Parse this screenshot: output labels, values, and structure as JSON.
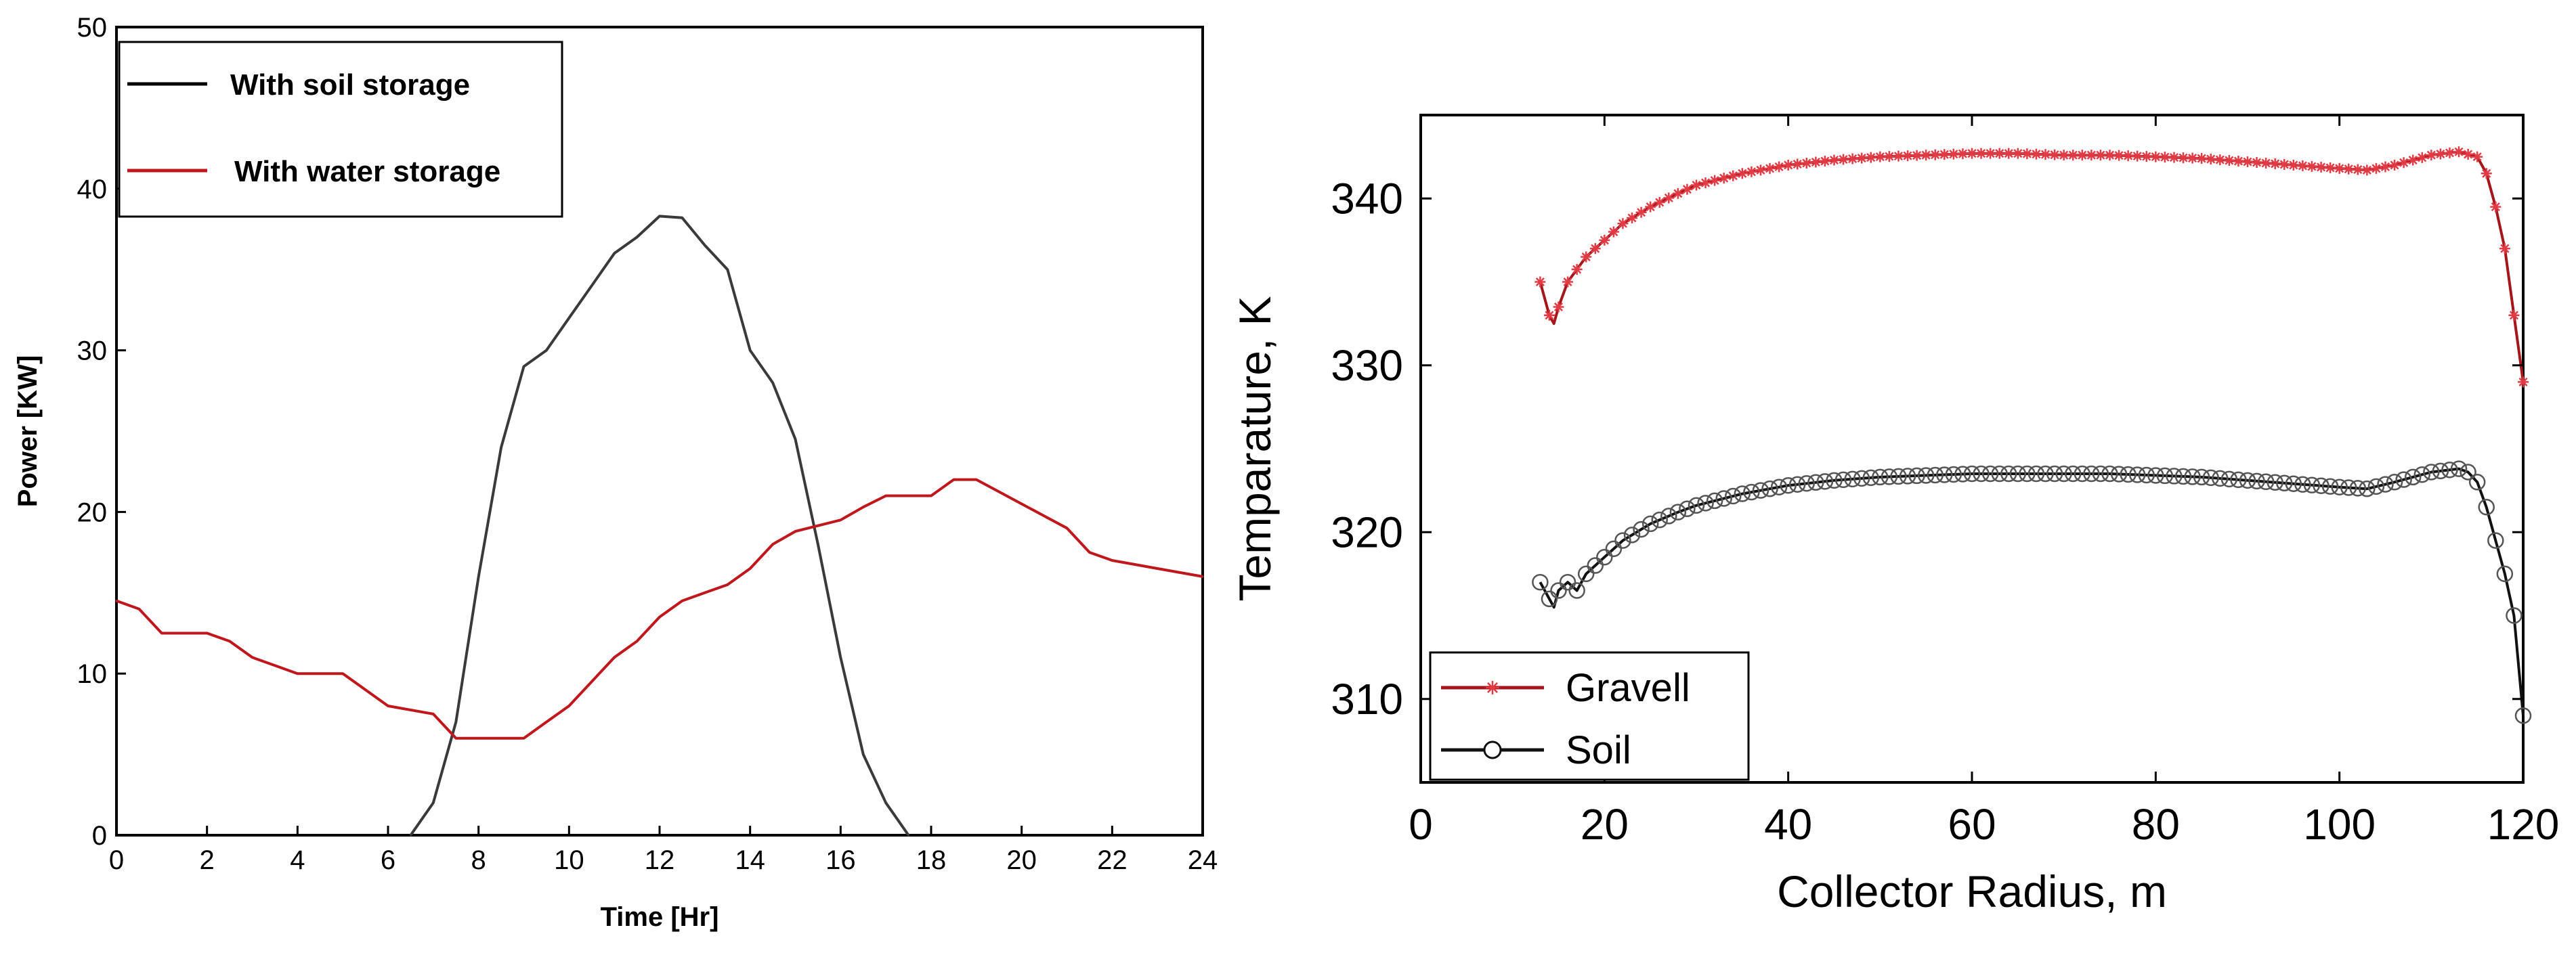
{
  "colors": {
    "soil_storage": "#3a3a3a",
    "water_storage": "#c0171c",
    "gravell": "#a4161a",
    "soil": "#111111",
    "axes": "#000000"
  },
  "chart_data": [
    {
      "type": "line",
      "title": "",
      "xlabel": "Time [Hr]",
      "ylabel": "Power [KW]",
      "xlim": [
        0,
        24
      ],
      "ylim": [
        0,
        50
      ],
      "xticks": [
        "0",
        "2",
        "4",
        "6",
        "8",
        "10",
        "12",
        "14",
        "16",
        "18",
        "20",
        "22",
        "24"
      ],
      "yticks": [
        "0",
        "10",
        "20",
        "30",
        "40",
        "50"
      ],
      "legend_position": "top-left",
      "series": [
        {
          "name": "With soil storage",
          "x": [
            6.5,
            7.0,
            7.5,
            8.0,
            8.5,
            9.0,
            9.5,
            10.0,
            10.5,
            11.0,
            11.5,
            12.0,
            12.5,
            13.0,
            13.5,
            14.0,
            14.5,
            15.0,
            15.5,
            16.0,
            16.5,
            17.0,
            17.5
          ],
          "y": [
            0,
            2,
            7,
            16,
            24,
            29,
            30,
            32,
            34,
            36,
            37,
            38.3,
            38.2,
            36.5,
            35,
            30,
            28,
            24.5,
            18,
            11,
            5,
            2,
            0
          ]
        },
        {
          "name": "With water storage",
          "x": [
            0,
            0.5,
            1,
            2,
            2.5,
            3,
            3.5,
            4,
            5,
            5.5,
            6,
            7,
            7.5,
            9,
            9.5,
            10,
            10.5,
            11,
            11.5,
            12,
            12.5,
            13,
            13.5,
            14,
            14.5,
            15,
            16,
            16.5,
            17,
            18,
            18.5,
            19,
            20,
            21,
            21.5,
            22,
            23,
            24
          ],
          "y": [
            14.5,
            14,
            12.5,
            12.5,
            12,
            11,
            10.5,
            10,
            10,
            9,
            8,
            7.5,
            6,
            6,
            7,
            8,
            9.5,
            11,
            12,
            13.5,
            14.5,
            15,
            15.5,
            16.5,
            18,
            18.8,
            19.5,
            20.3,
            21,
            21,
            22,
            22,
            20.5,
            19,
            17.5,
            17,
            16.5,
            16
          ]
        }
      ]
    },
    {
      "type": "line",
      "title": "",
      "xlabel": "Collector Radius, m",
      "ylabel": "Temparature, K",
      "xlim": [
        0,
        120
      ],
      "ylim": [
        305,
        345
      ],
      "xticks": [
        "0",
        "20",
        "40",
        "60",
        "80",
        "100",
        "120"
      ],
      "yticks": [
        "310",
        "320",
        "330",
        "340"
      ],
      "legend_position": "bottom-left",
      "series": [
        {
          "name": "Gravell",
          "marker": "asterisk",
          "x": [
            13,
            14,
            14.5,
            15,
            16,
            18,
            20,
            22,
            25,
            28,
            30,
            35,
            40,
            45,
            50,
            55,
            60,
            65,
            70,
            75,
            80,
            85,
            90,
            95,
            100,
            103,
            106,
            110,
            113,
            115,
            116,
            117,
            118,
            119,
            120
          ],
          "y": [
            335,
            333,
            332.5,
            333.5,
            335,
            336.5,
            337.5,
            338.5,
            339.5,
            340.3,
            340.8,
            341.5,
            342,
            342.3,
            342.5,
            342.6,
            342.7,
            342.7,
            342.6,
            342.6,
            342.5,
            342.4,
            342.2,
            342,
            341.8,
            341.7,
            342,
            342.6,
            342.8,
            342.5,
            341.5,
            339.5,
            337,
            333,
            329
          ]
        },
        {
          "name": "Soil",
          "marker": "circle",
          "x": [
            13,
            14,
            14.5,
            15,
            16,
            17,
            18,
            20,
            22,
            25,
            28,
            30,
            35,
            40,
            45,
            50,
            55,
            60,
            65,
            70,
            75,
            80,
            85,
            90,
            95,
            100,
            103,
            106,
            110,
            113,
            114,
            115,
            116,
            117,
            118,
            119,
            120
          ],
          "y": [
            317,
            316,
            315.5,
            316.5,
            317,
            316.5,
            317.5,
            318.5,
            319.5,
            320.5,
            321.2,
            321.6,
            322.3,
            322.8,
            323.1,
            323.3,
            323.4,
            323.5,
            323.5,
            323.5,
            323.5,
            323.4,
            323.3,
            323.1,
            322.9,
            322.7,
            322.6,
            323,
            323.6,
            323.8,
            323.6,
            323,
            321.5,
            319.5,
            317.5,
            315,
            309
          ]
        }
      ]
    }
  ]
}
